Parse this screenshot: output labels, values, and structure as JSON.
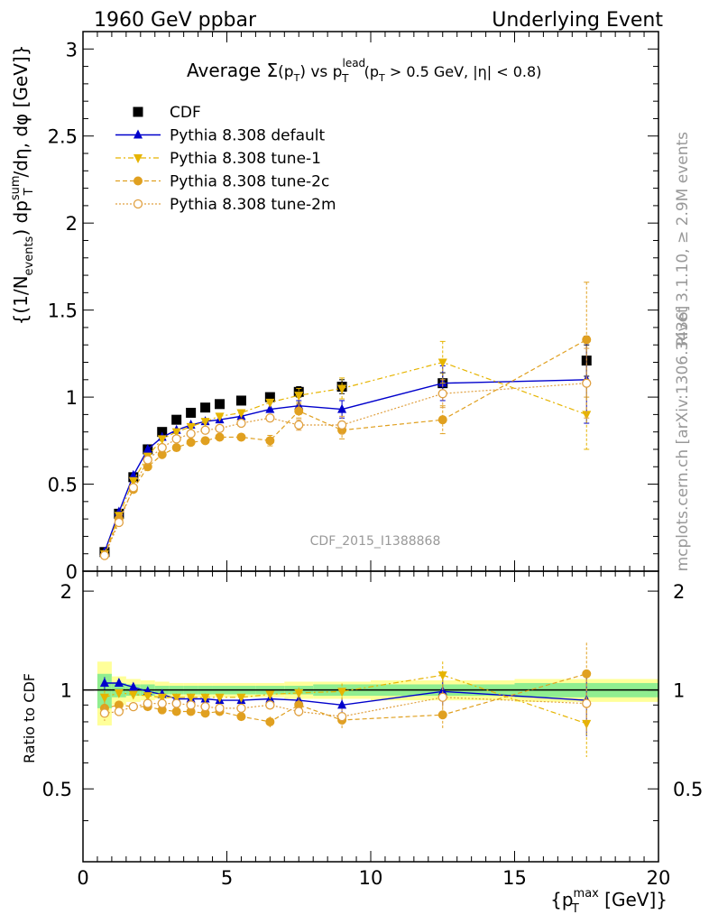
{
  "header": {
    "energy": "1960 GeV ppbar",
    "event_type": "Underlying Event",
    "rivet": "Rivet 3.1.10, ≥ 2.9M events",
    "mcplots": "mcplots.cern.ch [arXiv:1306.3436]",
    "analysis": "CDF_2015_I1388868"
  },
  "title_parts": {
    "avg": "Average ",
    "sigma": "Σ",
    "pT_open": "(p",
    "T": "T",
    "pT_close": ")",
    "vs": " vs p",
    "lead": "lead",
    "cut": " (p",
    "cut2": " > 0.5 GeV, |η| < 0.8)"
  },
  "ylabel_parts": {
    "a": "{(1/N",
    "events": "events",
    "b": ") dp",
    "sum": "sum",
    "T": "T",
    "c": "/dη, dφ [GeV]}"
  },
  "xlabel_parts": {
    "a": "{p",
    "max": "max",
    "T": "T",
    "b": " [GeV]}"
  },
  "ratio_ylabel": "Ratio to CDF",
  "colors": {
    "data": "#000000",
    "default": "#0000cc",
    "tune1": "#e6b400",
    "tune2c": "#e0a020",
    "tune2m": "#e0a040",
    "band_inner": "#90ee90",
    "band_outer": "#ffff99"
  },
  "chart_data": [
    {
      "type": "scatter",
      "xlim": [
        0,
        20
      ],
      "ylim": [
        0,
        3.1
      ],
      "yticks": [
        "0.5",
        "1",
        "1.5",
        "2",
        "2.5",
        "3"
      ],
      "ytick_values": [
        0.5,
        1,
        1.5,
        2,
        2.5,
        3
      ],
      "legend_placement": "top-left",
      "series": [
        {
          "name": "CDF",
          "marker": "square",
          "x": [
            0.75,
            1.25,
            1.75,
            2.25,
            2.75,
            3.25,
            3.75,
            4.25,
            4.75,
            5.5,
            6.5,
            7.5,
            9.0,
            12.5,
            17.5
          ],
          "y": [
            0.11,
            0.33,
            0.54,
            0.7,
            0.8,
            0.87,
            0.91,
            0.94,
            0.96,
            0.98,
            1.0,
            1.03,
            1.06,
            1.08,
            1.21
          ],
          "err": [
            0.01,
            0.01,
            0.01,
            0.01,
            0.01,
            0.01,
            0.01,
            0.01,
            0.01,
            0.01,
            0.02,
            0.03,
            0.04,
            0.06,
            0.09
          ]
        },
        {
          "name": "Pythia 8.308 default",
          "marker": "triangle-up",
          "x": [
            0.75,
            1.25,
            1.75,
            2.25,
            2.75,
            3.25,
            3.75,
            4.25,
            4.75,
            5.5,
            6.5,
            7.5,
            9.0,
            12.5,
            17.5
          ],
          "y": [
            0.11,
            0.34,
            0.55,
            0.7,
            0.77,
            0.81,
            0.84,
            0.86,
            0.87,
            0.89,
            0.93,
            0.95,
            0.93,
            1.08,
            1.1
          ],
          "err": [
            0.005,
            0.005,
            0.005,
            0.005,
            0.005,
            0.01,
            0.01,
            0.01,
            0.01,
            0.01,
            0.02,
            0.03,
            0.05,
            0.1,
            0.25
          ]
        },
        {
          "name": "Pythia 8.308 tune-1",
          "marker": "triangle-down",
          "x": [
            0.75,
            1.25,
            1.75,
            2.25,
            2.75,
            3.25,
            3.75,
            4.25,
            4.75,
            5.5,
            6.5,
            7.5,
            9.0,
            12.5,
            17.5
          ],
          "y": [
            0.1,
            0.32,
            0.52,
            0.66,
            0.76,
            0.8,
            0.83,
            0.86,
            0.89,
            0.91,
            0.97,
            1.01,
            1.05,
            1.2,
            0.9
          ],
          "err": [
            0.005,
            0.005,
            0.005,
            0.005,
            0.005,
            0.01,
            0.01,
            0.01,
            0.01,
            0.01,
            0.02,
            0.04,
            0.06,
            0.12,
            0.2
          ]
        },
        {
          "name": "Pythia 8.308 tune-2c",
          "marker": "circle",
          "x": [
            0.75,
            1.25,
            1.75,
            2.25,
            2.75,
            3.25,
            3.75,
            4.25,
            4.75,
            5.5,
            6.5,
            7.5,
            9.0,
            12.5,
            17.5
          ],
          "y": [
            0.09,
            0.3,
            0.47,
            0.6,
            0.67,
            0.71,
            0.74,
            0.75,
            0.77,
            0.77,
            0.75,
            0.92,
            0.81,
            0.87,
            1.33
          ],
          "err": [
            0.005,
            0.005,
            0.005,
            0.005,
            0.005,
            0.01,
            0.01,
            0.01,
            0.01,
            0.01,
            0.03,
            0.04,
            0.05,
            0.08,
            0.33
          ]
        },
        {
          "name": "Pythia 8.308 tune-2m",
          "marker": "circle-open",
          "x": [
            0.75,
            1.25,
            1.75,
            2.25,
            2.75,
            3.25,
            3.75,
            4.25,
            4.75,
            5.5,
            6.5,
            7.5,
            9.0,
            12.5,
            17.5
          ],
          "y": [
            0.09,
            0.28,
            0.48,
            0.64,
            0.71,
            0.76,
            0.79,
            0.81,
            0.82,
            0.85,
            0.88,
            0.84,
            0.84,
            1.02,
            1.08
          ],
          "err": [
            0.005,
            0.005,
            0.005,
            0.005,
            0.005,
            0.01,
            0.01,
            0.01,
            0.01,
            0.01,
            0.02,
            0.03,
            0.05,
            0.08,
            0.2
          ]
        }
      ]
    },
    {
      "type": "scatter",
      "ylabel": "Ratio to CDF",
      "xlim": [
        0,
        20
      ],
      "ylim": [
        0.3,
        2.3
      ],
      "yticks": [
        "0.5",
        "1",
        "2"
      ],
      "ytick_values": [
        0.5,
        1,
        2
      ],
      "xticks": [
        "0",
        "5",
        "10",
        "15",
        "20"
      ],
      "xtick_values": [
        0,
        5,
        10,
        15,
        20
      ],
      "bands": {
        "edges": [
          0.5,
          1.0,
          1.5,
          2.0,
          2.5,
          3.0,
          3.5,
          4.0,
          4.5,
          5.0,
          6.0,
          7.0,
          8.0,
          10.0,
          15.0,
          20.0
        ],
        "inner": [
          0.12,
          0.05,
          0.04,
          0.04,
          0.03,
          0.03,
          0.03,
          0.03,
          0.03,
          0.03,
          0.03,
          0.03,
          0.04,
          0.04,
          0.05
        ],
        "outer": [
          0.22,
          0.1,
          0.08,
          0.07,
          0.06,
          0.05,
          0.05,
          0.05,
          0.05,
          0.05,
          0.05,
          0.06,
          0.06,
          0.07,
          0.08
        ]
      },
      "series": [
        {
          "name": "Pythia 8.308 default",
          "x": [
            0.75,
            1.25,
            1.75,
            2.25,
            2.75,
            3.25,
            3.75,
            4.25,
            4.75,
            5.5,
            6.5,
            7.5,
            9.0,
            12.5,
            17.5
          ],
          "y": [
            1.05,
            1.05,
            1.02,
            0.99,
            0.97,
            0.94,
            0.94,
            0.94,
            0.93,
            0.93,
            0.94,
            0.93,
            0.9,
            0.99,
            0.93
          ]
        },
        {
          "name": "Pythia 8.308 tune-1",
          "x": [
            0.75,
            1.25,
            1.75,
            2.25,
            2.75,
            3.25,
            3.75,
            4.25,
            4.75,
            5.5,
            6.5,
            7.5,
            9.0,
            12.5,
            17.5
          ],
          "y": [
            0.95,
            0.98,
            0.97,
            0.96,
            0.95,
            0.95,
            0.95,
            0.95,
            0.95,
            0.95,
            0.97,
            0.98,
            0.99,
            1.11,
            0.79
          ]
        },
        {
          "name": "Pythia 8.308 tune-2c",
          "x": [
            0.75,
            1.25,
            1.75,
            2.25,
            2.75,
            3.25,
            3.75,
            4.25,
            4.75,
            5.5,
            6.5,
            7.5,
            9.0,
            12.5,
            17.5
          ],
          "y": [
            0.88,
            0.9,
            0.89,
            0.89,
            0.87,
            0.86,
            0.86,
            0.85,
            0.86,
            0.83,
            0.8,
            0.9,
            0.81,
            0.84,
            1.12
          ]
        },
        {
          "name": "Pythia 8.308 tune-2m",
          "x": [
            0.75,
            1.25,
            1.75,
            2.25,
            2.75,
            3.25,
            3.75,
            4.25,
            4.75,
            5.5,
            6.5,
            7.5,
            9.0,
            12.5,
            17.5
          ],
          "y": [
            0.85,
            0.86,
            0.89,
            0.91,
            0.91,
            0.91,
            0.9,
            0.89,
            0.88,
            0.88,
            0.9,
            0.86,
            0.83,
            0.95,
            0.91
          ]
        }
      ]
    }
  ]
}
